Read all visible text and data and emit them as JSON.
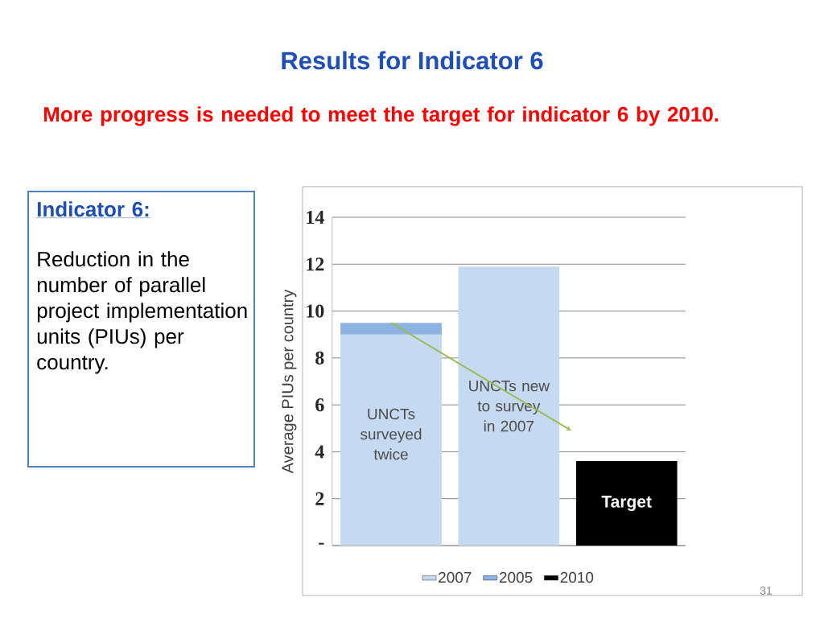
{
  "chart_data": {
    "type": "bar",
    "stacked": true,
    "title": "Results for Indicator 6",
    "subtitle": "More progress is needed to meet the target for indicator 6 by 2010.",
    "ylabel": "Average PIUs per country",
    "categories": [
      "UNCTs surveyed twice",
      "UNCTs new to survey in 2007",
      "Target"
    ],
    "series": [
      {
        "name": "2007",
        "color": "#c5d9f1",
        "values": [
          9.0,
          11.9,
          null
        ]
      },
      {
        "name": "2005",
        "color": "#8db3e2",
        "values": [
          0.5,
          null,
          null
        ]
      },
      {
        "name": "2010",
        "color": "#000000",
        "values": [
          null,
          null,
          3.6
        ]
      }
    ],
    "ylim": [
      0,
      14
    ],
    "yticks": [
      {
        "value": 0,
        "label": "-"
      },
      2,
      4,
      6,
      8,
      10,
      12,
      14
    ],
    "grid": "y",
    "legend": "bottom",
    "annotations": [
      "Indicator 6:",
      "Reduction in the number of parallel project implementation units (PIUs) per country.",
      "31"
    ]
  }
}
